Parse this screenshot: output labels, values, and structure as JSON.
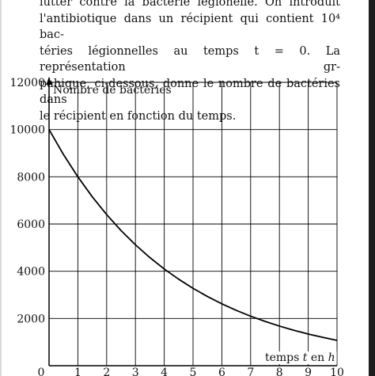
{
  "paragraph": {
    "line1": "lutter contre la bactérie légionelle.   On introduit",
    "line2": "l'antibiotique dans un récipient qui contient 10⁴ bac-",
    "line3": "téries légionnelles au temps t = 0. La représentation gr-",
    "line4": "pahique, ci-dessous, donne le nombre de bactéries dans",
    "line5": "le récipient en fonction du temps."
  },
  "chart_data": {
    "type": "line",
    "title": "",
    "ylabel": "Nombre de bactéries",
    "xlabel": "temps t en h",
    "xlim": [
      0,
      10
    ],
    "ylim": [
      0,
      12000
    ],
    "x_ticks": [
      "0",
      "1",
      "2",
      "3",
      "4",
      "5",
      "6",
      "7",
      "8",
      "9",
      "10"
    ],
    "y_ticks": [
      "2000",
      "4000",
      "6000",
      "8000",
      "10000",
      "12000"
    ],
    "grid": true,
    "series": [
      {
        "x": [
          0,
          0.5,
          1,
          1.5,
          2,
          2.5,
          3,
          3.5,
          4,
          4.5,
          5,
          5.5,
          6,
          6.5,
          7,
          7.5,
          8,
          8.5,
          9,
          9.5,
          10
        ],
        "y": [
          10000,
          8944,
          8000,
          7155,
          6400,
          5724,
          5120,
          4579,
          4096,
          3664,
          3277,
          2931,
          2621,
          2345,
          2097,
          1876,
          1678,
          1501,
          1342,
          1201,
          1074
        ],
        "color": "#000000"
      }
    ]
  }
}
